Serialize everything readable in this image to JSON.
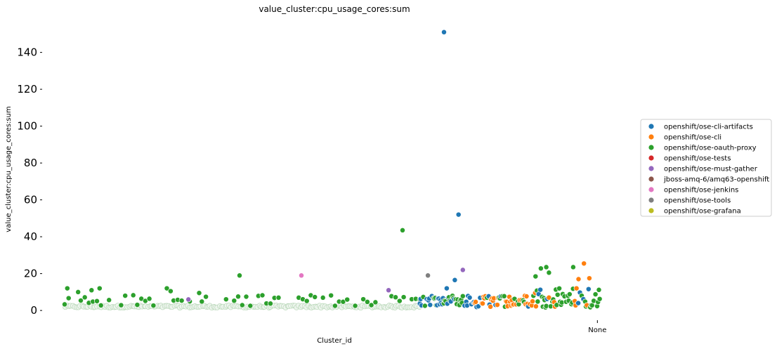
{
  "chart_data": {
    "type": "scatter",
    "title": "value_cluster:cpu_usage_cores:sum",
    "xlabel": "Cluster_id",
    "ylabel": "value_cluster:cpu_usage_cores:sum",
    "xtick_labels": [
      "None"
    ],
    "yticks": [
      0,
      20,
      40,
      60,
      80,
      100,
      120,
      140
    ],
    "ylim": [
      -3,
      157
    ],
    "xlim": [
      0,
      100
    ],
    "grid": false,
    "legend_position": "right",
    "series": [
      {
        "name": "openshift/ose-cli-artifacts",
        "color": "#1f77b4"
      },
      {
        "name": "openshift/ose-cli",
        "color": "#ff7f0e"
      },
      {
        "name": "openshift/ose-oauth-proxy",
        "color": "#2ca02c"
      },
      {
        "name": "openshift/ose-tests",
        "color": "#d62728"
      },
      {
        "name": "openshift/ose-must-gather",
        "color": "#9467bd"
      },
      {
        "name": "jboss-amq-6/amq63-openshift",
        "color": "#8c564b"
      },
      {
        "name": "openshift/ose-jenkins",
        "color": "#e377c2"
      },
      {
        "name": "openshift/ose-tools",
        "color": "#7f7f7f"
      },
      {
        "name": "openshift/ose-grafana",
        "color": "#bcbd22"
      }
    ],
    "notable_points": [
      {
        "series": 0,
        "x": 70.5,
        "y": 151
      },
      {
        "series": 0,
        "x": 73.2,
        "y": 52
      },
      {
        "series": 2,
        "x": 62.8,
        "y": 43.5
      },
      {
        "series": 2,
        "x": 32.5,
        "y": 19
      },
      {
        "series": 6,
        "x": 44.0,
        "y": 19
      },
      {
        "series": 7,
        "x": 67.5,
        "y": 19
      },
      {
        "series": 4,
        "x": 74.0,
        "y": 22
      },
      {
        "series": 4,
        "x": 60.2,
        "y": 11
      },
      {
        "series": 1,
        "x": 96.5,
        "y": 25.5
      },
      {
        "series": 2,
        "x": 94.5,
        "y": 23.5
      },
      {
        "series": 2,
        "x": 89.5,
        "y": 23.5
      },
      {
        "series": 2,
        "x": 88.5,
        "y": 22.8
      },
      {
        "series": 2,
        "x": 90.0,
        "y": 20.5
      },
      {
        "series": 2,
        "x": 87.5,
        "y": 18.5
      },
      {
        "series": 1,
        "x": 97.5,
        "y": 17.5
      },
      {
        "series": 1,
        "x": 95.5,
        "y": 17
      },
      {
        "series": 0,
        "x": 72.5,
        "y": 16.5
      },
      {
        "series": 0,
        "x": 71.0,
        "y": 12
      },
      {
        "series": 2,
        "x": 0.5,
        "y": 12
      },
      {
        "series": 2,
        "x": 6.5,
        "y": 12
      },
      {
        "series": 2,
        "x": 19.0,
        "y": 12
      },
      {
        "series": 2,
        "x": 5.0,
        "y": 11
      },
      {
        "series": 2,
        "x": 19.7,
        "y": 10.5
      },
      {
        "series": 2,
        "x": 2.5,
        "y": 10
      },
      {
        "series": 2,
        "x": 25.0,
        "y": 9.5
      },
      {
        "series": 4,
        "x": 23.0,
        "y": 6
      }
    ]
  }
}
